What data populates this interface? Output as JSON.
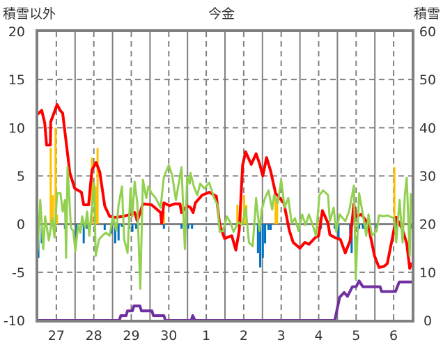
{
  "chart_data": {
    "type": "line",
    "title": "今金",
    "ylabel_left": "積雪以外",
    "ylabel_right": "積雪",
    "ylim_left": [
      -10,
      20
    ],
    "ylim_right": [
      0,
      60
    ],
    "yticks_left": [
      "20",
      "15",
      "10",
      "5",
      "0",
      "-5",
      "-10"
    ],
    "yticks_right": [
      "60",
      "50",
      "40",
      "30",
      "20",
      "10",
      "0"
    ],
    "xlim_days": [
      0,
      10
    ],
    "xtick_labels": [
      "27",
      "28",
      "29",
      "30",
      "1",
      "2",
      "3",
      "4",
      "5",
      "6"
    ],
    "grid": true,
    "colors": {
      "red": "#FF0000",
      "green": "#92D050",
      "purple": "#7030A0",
      "blue": "#0070C0",
      "orange": "#FFC000",
      "axis": "#808080"
    },
    "series": [
      {
        "name": "red-line",
        "axis": "left",
        "color": "#FF0000",
        "t": [
          0,
          0.11,
          0.19,
          0.24,
          0.34,
          0.35,
          0.52,
          0.6,
          0.67,
          0.86,
          0.99,
          1.17,
          1.23,
          1.36,
          1.45,
          1.56,
          1.66,
          1.79,
          1.92,
          2.07,
          2.29,
          2.48,
          2.59,
          2.66,
          2.81,
          3.04,
          3.28,
          3.31,
          3.37,
          3.52,
          3.65,
          3.8,
          3.84,
          3.99,
          4.08,
          4.15,
          4.21,
          4.39,
          4.58,
          4.77,
          4.86,
          4.99,
          5.18,
          5.29,
          5.38,
          5.47,
          5.55,
          5.7,
          5.83,
          5.92,
          6.01,
          6.11,
          6.22,
          6.35,
          6.57,
          6.72,
          6.82,
          7.0,
          7.13,
          7.24,
          7.41,
          7.5,
          7.6,
          7.75,
          7.8,
          7.93,
          8.08,
          8.21,
          8.34,
          8.44,
          8.49,
          8.64,
          8.81,
          8.99,
          9.11,
          9.24,
          9.33,
          9.48,
          9.57,
          9.74,
          9.85,
          9.93,
          9.98
        ],
        "v": [
          11.4,
          11.8,
          10.5,
          8.2,
          8.2,
          10.6,
          12.4,
          11.8,
          11.5,
          5.3,
          3.7,
          3.3,
          2.0,
          2.0,
          5.6,
          6.4,
          5.4,
          1.9,
          0.8,
          0.7,
          0.8,
          1.0,
          1.2,
          0.3,
          2.1,
          2.0,
          1.2,
          0.1,
          2.2,
          1.9,
          2.1,
          2.1,
          1.2,
          1.9,
          1.7,
          1.2,
          2.2,
          3.0,
          3.3,
          2.9,
          -0.1,
          -1.5,
          -1.2,
          -2.7,
          -0.7,
          6.1,
          7.5,
          6.2,
          7.3,
          6.3,
          5.0,
          6.9,
          5.5,
          3.2,
          2.2,
          -0.7,
          -1.9,
          -2.5,
          -1.9,
          -2.1,
          -1.4,
          -1.2,
          1.4,
          0.1,
          -1.1,
          -1.4,
          -1.6,
          -3.0,
          -1.7,
          2.1,
          0.8,
          1.0,
          0.1,
          -3.3,
          -4.5,
          -4.4,
          -4.1,
          -1.2,
          0.7,
          -0.6,
          -2.0,
          -4.6,
          -4.0
        ]
      },
      {
        "name": "green-line",
        "axis": "left",
        "color": "#92D050",
        "t": [
          0,
          0.07,
          0.15,
          0.2,
          0.3,
          0.39,
          0.45,
          0.52,
          0.61,
          0.67,
          0.73,
          0.76,
          0.8,
          0.89,
          0.95,
          1.01,
          1.08,
          1.14,
          1.19,
          1.27,
          1.32,
          1.38,
          1.51,
          1.55,
          1.64,
          1.73,
          1.82,
          1.92,
          2.01,
          2.1,
          2.16,
          2.25,
          2.31,
          2.4,
          2.48,
          2.53,
          2.59,
          2.66,
          2.74,
          2.81,
          2.9,
          2.96,
          3.04,
          3.15,
          3.28,
          3.37,
          3.5,
          3.59,
          3.69,
          3.84,
          3.93,
          3.99,
          4.06,
          4.08,
          4.17,
          4.26,
          4.34,
          4.45,
          4.58,
          4.71,
          4.8,
          4.86,
          4.95,
          5.05,
          5.14,
          5.23,
          5.36,
          5.46,
          5.55,
          5.64,
          5.74,
          5.83,
          5.92,
          5.98,
          6.07,
          6.16,
          6.26,
          6.31,
          6.41,
          6.5,
          6.59,
          6.69,
          6.78,
          6.87,
          6.96,
          7.06,
          7.15,
          7.24,
          7.34,
          7.43,
          7.52,
          7.62,
          7.75,
          7.8,
          7.9,
          7.97,
          8.06,
          8.21,
          8.31,
          8.44,
          8.49,
          8.58,
          8.68,
          8.77,
          8.83,
          8.92,
          9.05,
          9.11,
          9.24,
          9.33,
          9.52,
          9.57,
          9.66,
          9.74,
          9.8,
          9.85,
          9.93,
          9.96
        ],
        "v": [
          -2.8,
          2.5,
          -2.6,
          0.8,
          -1.7,
          0.6,
          -1.4,
          3.2,
          3.2,
          1.3,
          2.5,
          -3.5,
          5.9,
          -0.4,
          -0.7,
          -2.8,
          -0.1,
          -0.9,
          0.8,
          -0.4,
          1.3,
          -1.2,
          4.2,
          -3.3,
          -1.6,
          -1.2,
          -0.9,
          -1.2,
          0.8,
          -0.7,
          2.0,
          3.9,
          -1.6,
          -3.0,
          3.7,
          0.8,
          4.4,
          2.2,
          -6.7,
          4.6,
          2.7,
          3.9,
          3.2,
          2.7,
          1.7,
          4.9,
          6.1,
          5.1,
          2.5,
          5.9,
          -2.6,
          4.9,
          4.2,
          5.3,
          3.9,
          3.0,
          4.2,
          3.7,
          4.3,
          2.7,
          2.0,
          -0.8,
          -0.7,
          0.8,
          0.2,
          -0.8,
          0.2,
          -0.1,
          1.7,
          -1.9,
          -2.3,
          2.7,
          -0.7,
          1.5,
          2.7,
          3.5,
          1.5,
          3.0,
          2.2,
          4.6,
          1.7,
          2.7,
          0.1,
          0.6,
          -0.7,
          1.0,
          -0.1,
          1.0,
          -0.1,
          -1.2,
          3.0,
          3.5,
          3.0,
          0.3,
          1.7,
          -0.8,
          1.0,
          0.3,
          1.3,
          4.0,
          -5.7,
          3.2,
          1.0,
          -1.2,
          1.0,
          -1.2,
          -0.7,
          0.9,
          0.8,
          0.9,
          0.6,
          -1.9,
          2.5,
          -1.9,
          3.0,
          4.8,
          -3.3,
          3.2
        ]
      },
      {
        "name": "snow-depth-line",
        "axis": "right",
        "color": "#7030A0",
        "t": [
          0,
          2.18,
          2.22,
          2.36,
          2.4,
          2.53,
          2.57,
          2.73,
          2.77,
          3.05,
          3.09,
          3.37,
          3.41,
          4.1,
          4.14,
          4.2,
          7.93,
          8.06,
          8.18,
          8.27,
          8.4,
          8.5,
          8.58,
          8.68,
          9.14,
          9.18,
          9.55,
          9.65,
          10
        ],
        "v": [
          0,
          0,
          1,
          1,
          2,
          2,
          3,
          3,
          2,
          2,
          1,
          1,
          0,
          0,
          1,
          0,
          0,
          4.8,
          5.8,
          5,
          7,
          7,
          8.2,
          7,
          7,
          6,
          6,
          8,
          8
        ]
      }
    ],
    "bars": [
      {
        "name": "blue-bars",
        "axis": "left",
        "color": "#0070C0",
        "t": [
          0.02,
          0.11,
          0.73,
          1.04,
          1.23,
          1.32,
          1.79,
          1.97,
          2.07,
          2.16,
          2.25,
          2.44,
          2.53,
          2.63,
          3.37,
          3.84,
          4.02,
          4.12,
          5.88,
          5.94,
          6.01,
          6.07,
          6.16,
          6.22,
          7.56,
          7.93,
          8.03,
          8.34,
          8.38,
          8.58,
          8.68,
          9.05,
          9.57,
          9.98
        ],
        "v": [
          -3.5,
          -2,
          -0.5,
          -1.5,
          -2,
          -0.5,
          -0.6,
          -1,
          -2,
          -1.7,
          -0.3,
          -0.5,
          -0.8,
          -0.5,
          -0.5,
          -0.5,
          -0.5,
          -0.5,
          -3,
          -4.5,
          -3.5,
          -2,
          -0.6,
          -0.6,
          -0.5,
          -0.5,
          -1.5,
          -1,
          -3,
          -0.5,
          -0.5,
          -0.5,
          -1,
          -0.5
        ]
      },
      {
        "name": "orange-bars",
        "axis": "left",
        "color": "#FFC000",
        "t": [
          0.35,
          0.41,
          0.48,
          0.52,
          1.42,
          1.45,
          1.55,
          1.6,
          3.37,
          5.33,
          5.42,
          5.51,
          5.57,
          6.35,
          6.39,
          7.47,
          7.56,
          9.52
        ],
        "v": [
          7.9,
          3,
          10,
          1,
          0.8,
          6.9,
          3.9,
          7.9,
          1.3,
          2,
          2,
          3,
          2,
          2.7,
          2.7,
          0.9,
          0.3,
          5.9
        ]
      }
    ]
  }
}
